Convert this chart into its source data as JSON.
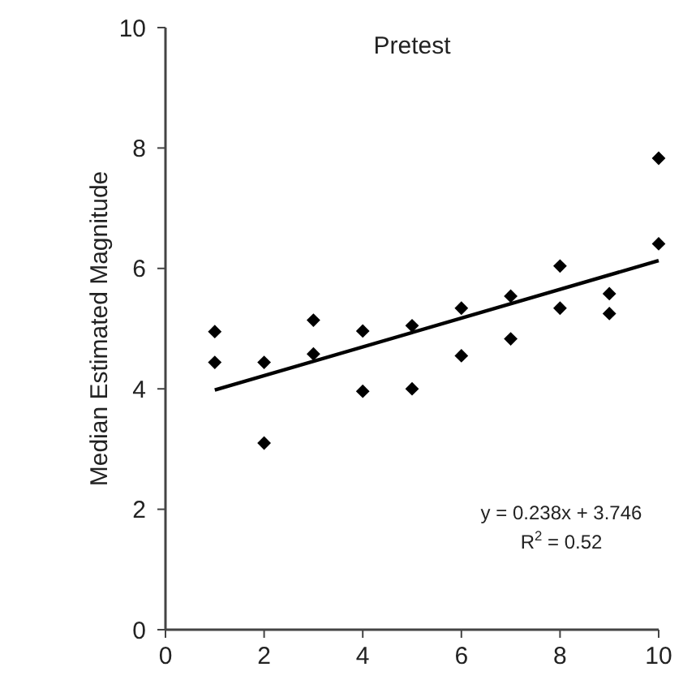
{
  "chart_data": {
    "type": "scatter",
    "title": "Pretest",
    "ylabel": "Median Estimated Magnitude",
    "xlim": [
      0,
      10
    ],
    "xticks": [
      0,
      2,
      4,
      6,
      8,
      10
    ],
    "ylim": [
      0,
      10
    ],
    "yticks": [
      0,
      2,
      4,
      6,
      8,
      10
    ],
    "grid": false,
    "marker": "diamond",
    "series": [
      {
        "color": "#000000",
        "x": [
          1,
          1,
          2,
          2,
          3,
          3,
          4,
          4,
          5,
          5,
          6,
          6,
          7,
          7,
          8,
          8,
          9,
          9,
          10,
          10
        ],
        "values": [
          4.95,
          4.44,
          4.44,
          3.1,
          5.14,
          4.58,
          4.96,
          3.96,
          4.0,
          5.05,
          5.34,
          4.55,
          5.54,
          4.83,
          6.04,
          5.34,
          5.58,
          5.25,
          7.83,
          6.41
        ]
      },
      {
        "type": "line",
        "color": "#000000",
        "marker": "none",
        "line_style": "solid",
        "x": [
          1,
          10
        ],
        "values": [
          3.98,
          6.13
        ]
      }
    ],
    "annotations": [
      "y = 0.238x + 3.746",
      "R$^{2}$ = 0.52"
    ]
  }
}
